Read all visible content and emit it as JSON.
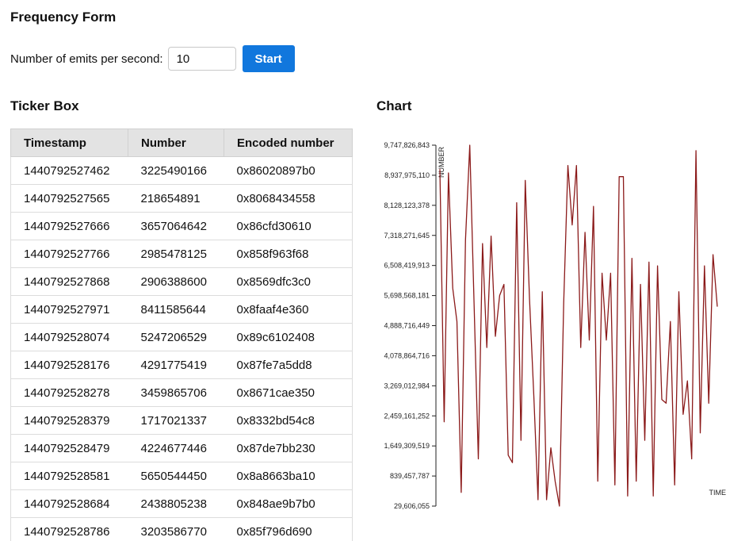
{
  "form": {
    "title": "Frequency Form",
    "label": "Number of emits per second:",
    "input_value": "10",
    "start_label": "Start"
  },
  "ticker": {
    "title": "Ticker Box",
    "columns": [
      "Timestamp",
      "Number",
      "Encoded number"
    ],
    "rows": [
      [
        "1440792527462",
        "3225490166",
        "0x86020897b0"
      ],
      [
        "1440792527565",
        "218654891",
        "0x8068434558"
      ],
      [
        "1440792527666",
        "3657064642",
        "0x86cfd30610"
      ],
      [
        "1440792527766",
        "2985478125",
        "0x858f963f68"
      ],
      [
        "1440792527868",
        "2906388600",
        "0x8569dfc3c0"
      ],
      [
        "1440792527971",
        "8411585644",
        "0x8faaf4e360"
      ],
      [
        "1440792528074",
        "5247206529",
        "0x89c6102408"
      ],
      [
        "1440792528176",
        "4291775419",
        "0x87fe7a5dd8"
      ],
      [
        "1440792528278",
        "3459865706",
        "0x8671cae350"
      ],
      [
        "1440792528379",
        "1717021337",
        "0x8332bd54c8"
      ],
      [
        "1440792528479",
        "4224677446",
        "0x87de7bb230"
      ],
      [
        "1440792528581",
        "5650544450",
        "0x8a8663ba10"
      ],
      [
        "1440792528684",
        "2438805238",
        "0x848ae9b7b0"
      ],
      [
        "1440792528786",
        "3203586770",
        "0x85f796d690"
      ]
    ]
  },
  "chart": {
    "title": "Chart",
    "line_color": "#8b1a1a"
  },
  "chart_data": {
    "type": "line",
    "title": "Chart",
    "xlabel": "TIME",
    "ylabel": "NUMBER",
    "ylim": [
      29606055,
      9747826843
    ],
    "yticks": [
      {
        "value": 9747826843,
        "label": "9,747,826,843"
      },
      {
        "value": 8937975110,
        "label": "8,937,975,110"
      },
      {
        "value": 8128123378,
        "label": "8,128,123,378"
      },
      {
        "value": 7318271645,
        "label": "7,318,271,645"
      },
      {
        "value": 6508419913,
        "label": "6,508,419,913"
      },
      {
        "value": 5698568181,
        "label": "5,698,568,181"
      },
      {
        "value": 4888716449,
        "label": "4,888,716,449"
      },
      {
        "value": 4078864716,
        "label": "4,078,864,716"
      },
      {
        "value": 3269012984,
        "label": "3,269,012,984"
      },
      {
        "value": 2459161252,
        "label": "2,459,161,252"
      },
      {
        "value": 1649309519,
        "label": "1,649,309,519"
      },
      {
        "value": 839457787,
        "label": "839,457,787"
      },
      {
        "value": 29606055,
        "label": "29,606,055"
      }
    ],
    "series": [
      {
        "values": [
          9100000000,
          2300000000,
          9000000000,
          5900000000,
          5000000000,
          400000000,
          7200000000,
          9747826843,
          5500000000,
          1300000000,
          7100000000,
          4300000000,
          7300000000,
          4600000000,
          5700000000,
          6000000000,
          1400000000,
          1200000000,
          8200000000,
          1800000000,
          8800000000,
          5600000000,
          3000000000,
          200000000,
          5800000000,
          200000000,
          1600000000,
          700000000,
          29606055,
          5500000000,
          9200000000,
          7600000000,
          9200000000,
          4300000000,
          7400000000,
          4500000000,
          8100000000,
          700000000,
          6300000000,
          4500000000,
          6300000000,
          600000000,
          8900000000,
          8900000000,
          300000000,
          6700000000,
          700000000,
          6000000000,
          1800000000,
          6600000000,
          300000000,
          6500000000,
          2900000000,
          2800000000,
          5000000000,
          600000000,
          5800000000,
          2500000000,
          3400000000,
          1300000000,
          9600000000,
          2000000000,
          6500000000,
          2800000000,
          6800000000,
          5400000000
        ]
      }
    ]
  }
}
